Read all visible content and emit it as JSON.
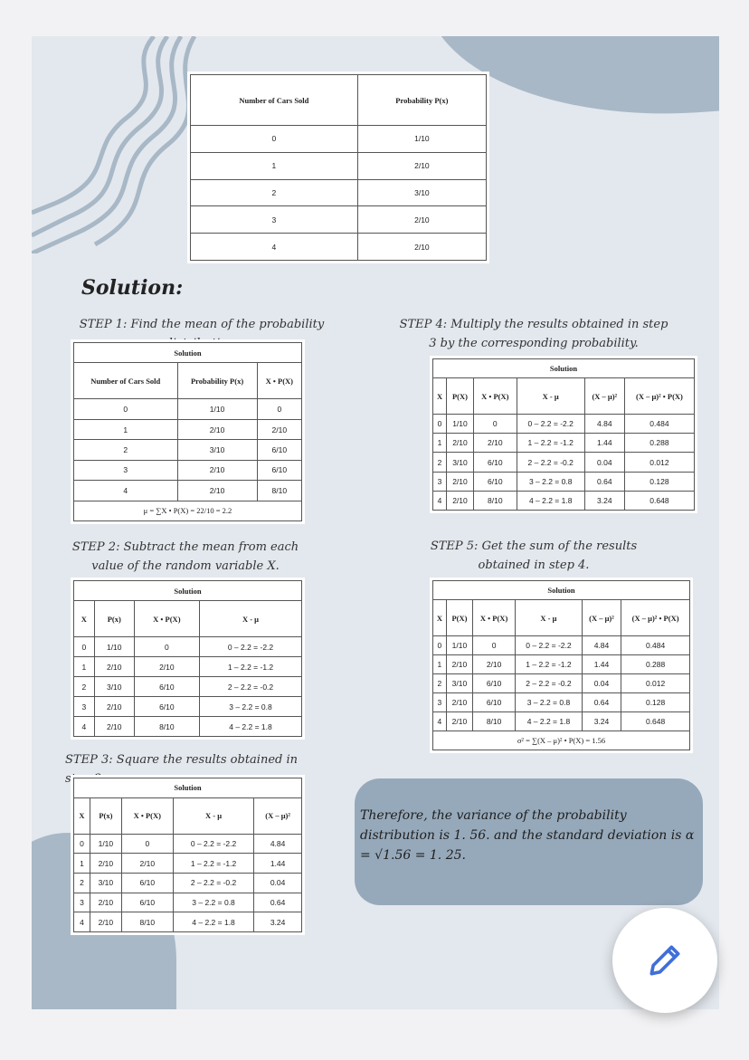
{
  "colors": {
    "background": "#e3e8ee",
    "accent_blob": "#a8b8c6",
    "conclusion_box": "#96a9ba",
    "pencil": "#3f6fd8"
  },
  "main_table": {
    "headers": [
      "Number of Cars Sold",
      "Probability P(x)"
    ],
    "rows": [
      [
        "0",
        "1/10"
      ],
      [
        "1",
        "2/10"
      ],
      [
        "2",
        "3/10"
      ],
      [
        "3",
        "2/10"
      ],
      [
        "4",
        "2/10"
      ]
    ]
  },
  "solution_heading": "Solution:",
  "steps": [
    {
      "text": "STEP 1: Find the mean of the probability distribution.",
      "table": {
        "caption": "Solution",
        "headers": [
          "Number of Cars Sold",
          "Probability P(x)",
          "X • P(X)"
        ],
        "rows": [
          [
            "0",
            "1/10",
            "0"
          ],
          [
            "1",
            "2/10",
            "2/10"
          ],
          [
            "2",
            "3/10",
            "6/10"
          ],
          [
            "3",
            "2/10",
            "6/10"
          ],
          [
            "4",
            "2/10",
            "8/10"
          ]
        ],
        "footer": "μ = ∑X • P(X) = 22/10 = 2.2"
      }
    },
    {
      "text": "STEP 2: Subtract the mean from each value of the random variable X.",
      "table": {
        "caption": "Solution",
        "headers": [
          "X",
          "P(x)",
          "X • P(X)",
          "X - μ"
        ],
        "rows": [
          [
            "0",
            "1/10",
            "0",
            "0 – 2.2 = -2.2"
          ],
          [
            "1",
            "2/10",
            "2/10",
            "1 – 2.2 = -1.2"
          ],
          [
            "2",
            "3/10",
            "6/10",
            "2 – 2.2 = -0.2"
          ],
          [
            "3",
            "2/10",
            "6/10",
            "3 – 2.2 = 0.8"
          ],
          [
            "4",
            "2/10",
            "8/10",
            "4 – 2.2 = 1.8"
          ]
        ]
      }
    },
    {
      "text": "STEP 3: Square the results obtained in step 2.",
      "table": {
        "caption": "Solution",
        "headers": [
          "X",
          "P(x)",
          "X • P(X)",
          "X - μ",
          "(X – μ)²"
        ],
        "rows": [
          [
            "0",
            "1/10",
            "0",
            "0 – 2.2 = -2.2",
            "4.84"
          ],
          [
            "1",
            "2/10",
            "2/10",
            "1 – 2.2 = -1.2",
            "1.44"
          ],
          [
            "2",
            "3/10",
            "6/10",
            "2 – 2.2 = -0.2",
            "0.04"
          ],
          [
            "3",
            "2/10",
            "6/10",
            "3 – 2.2 = 0.8",
            "0.64"
          ],
          [
            "4",
            "2/10",
            "8/10",
            "4 – 2.2 = 1.8",
            "3.24"
          ]
        ]
      }
    },
    {
      "text": "STEP 4: Multiply the results obtained in step 3 by the corresponding probability.",
      "table": {
        "caption": "Solution",
        "headers": [
          "X",
          "P(X)",
          "X • P(X)",
          "X - μ",
          "(X – μ)²",
          "(X – μ)² • P(X)"
        ],
        "rows": [
          [
            "0",
            "1/10",
            "0",
            "0 – 2.2 = -2.2",
            "4.84",
            "0.484"
          ],
          [
            "1",
            "2/10",
            "2/10",
            "1 – 2.2 = -1.2",
            "1.44",
            "0.288"
          ],
          [
            "2",
            "3/10",
            "6/10",
            "2 – 2.2 = -0.2",
            "0.04",
            "0.012"
          ],
          [
            "3",
            "2/10",
            "6/10",
            "3 – 2.2 = 0.8",
            "0.64",
            "0.128"
          ],
          [
            "4",
            "2/10",
            "8/10",
            "4 – 2.2 = 1.8",
            "3.24",
            "0.648"
          ]
        ]
      }
    },
    {
      "text": "STEP 5: Get the sum of the results obtained in step 4.",
      "table": {
        "caption": "Solution",
        "headers": [
          "X",
          "P(X)",
          "X • P(X)",
          "X - μ",
          "(X – μ)²",
          "(X – μ)² • P(X)"
        ],
        "rows": [
          [
            "0",
            "1/10",
            "0",
            "0 – 2.2 = -2.2",
            "4.84",
            "0.484"
          ],
          [
            "1",
            "2/10",
            "2/10",
            "1 – 2.2 = -1.2",
            "1.44",
            "0.288"
          ],
          [
            "2",
            "3/10",
            "6/10",
            "2 – 2.2 = -0.2",
            "0.04",
            "0.012"
          ],
          [
            "3",
            "2/10",
            "6/10",
            "3 – 2.2 = 0.8",
            "0.64",
            "0.128"
          ],
          [
            "4",
            "2/10",
            "8/10",
            "4 – 2.2 = 1.8",
            "3.24",
            "0.648"
          ]
        ],
        "footer": "σ² = ∑(X – μ)² • P(X) = 1.56"
      }
    }
  ],
  "conclusion": "Therefore, the variance of the probability distribution is 1. 56. and the standard deviation is α = √1.56 = 1. 25.",
  "fab": {
    "icon": "pencil-icon"
  }
}
